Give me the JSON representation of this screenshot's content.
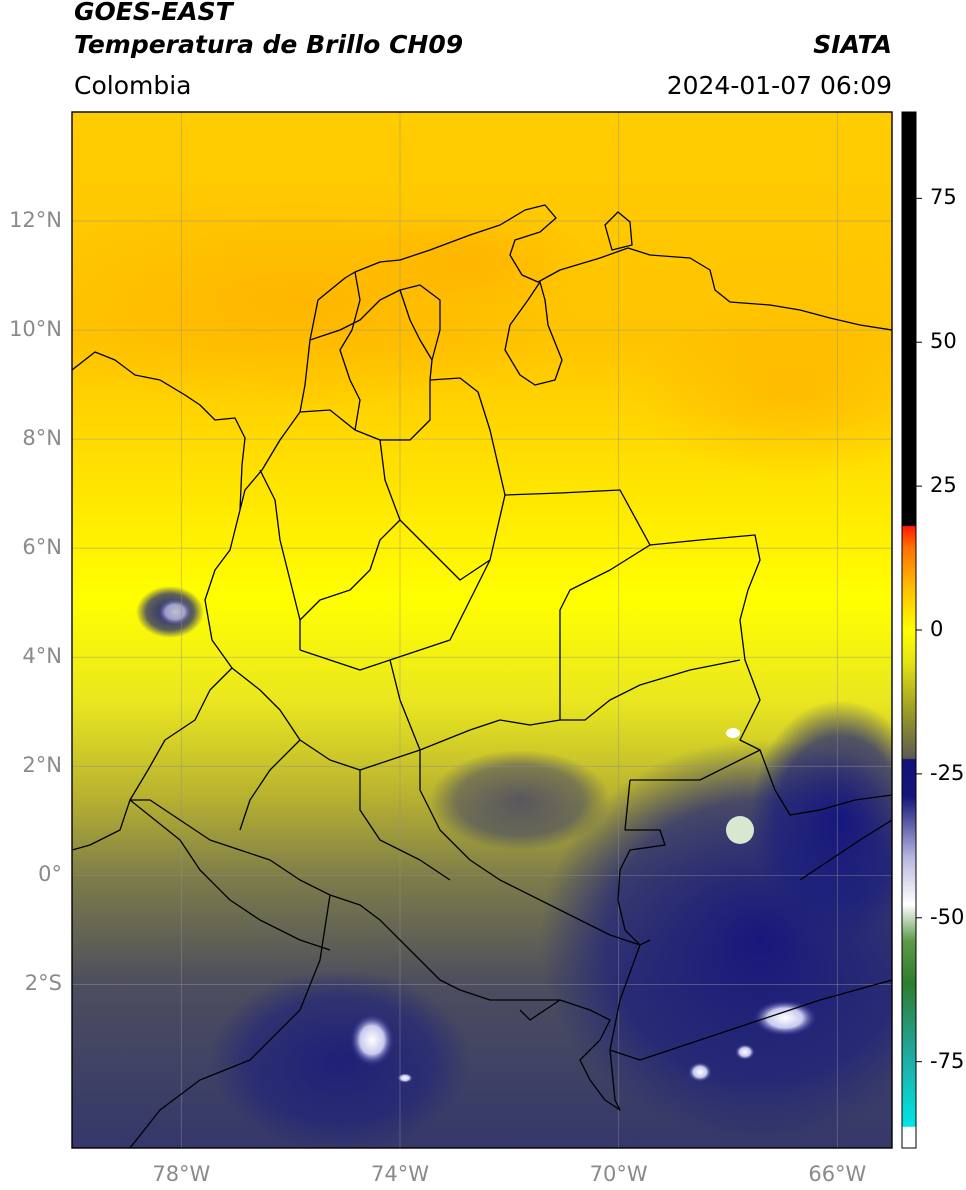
{
  "header": {
    "satellite": "GOES-EAST",
    "product": "Temperatura de Brillo CH09",
    "region": "Colombia",
    "credit": "SIATA",
    "datetime": "2024-01-07 06:09"
  },
  "axes": {
    "lat_labels": [
      "12°N",
      "10°N",
      "8°N",
      "6°N",
      "4°N",
      "2°N",
      "0°",
      "2°S"
    ],
    "lat_values": [
      12,
      10,
      8,
      6,
      4,
      2,
      0,
      -2
    ],
    "lon_labels": [
      "78°W",
      "74°W",
      "70°W",
      "66°W"
    ],
    "lon_values": [
      -78,
      -74,
      -70,
      -66
    ],
    "lon_range": [
      -80,
      -65
    ],
    "lat_range": [
      -5,
      14
    ],
    "grid": true
  },
  "colorbar": {
    "tick_labels": [
      "75",
      "50",
      "25",
      "0",
      "-25",
      "-50",
      "-75"
    ],
    "tick_values": [
      75,
      50,
      25,
      0,
      -25,
      -50,
      -75
    ],
    "range": [
      -90,
      90
    ],
    "colors": {
      "black": "#000000",
      "red": "#ff1a00",
      "orange": "#ffa500",
      "yellow": "#ffff00",
      "olive": "#9a9a20",
      "navy": "#12127a",
      "white": "#ffffff",
      "green": "#2e7d2e",
      "cyan": "#00e5e5"
    }
  }
}
